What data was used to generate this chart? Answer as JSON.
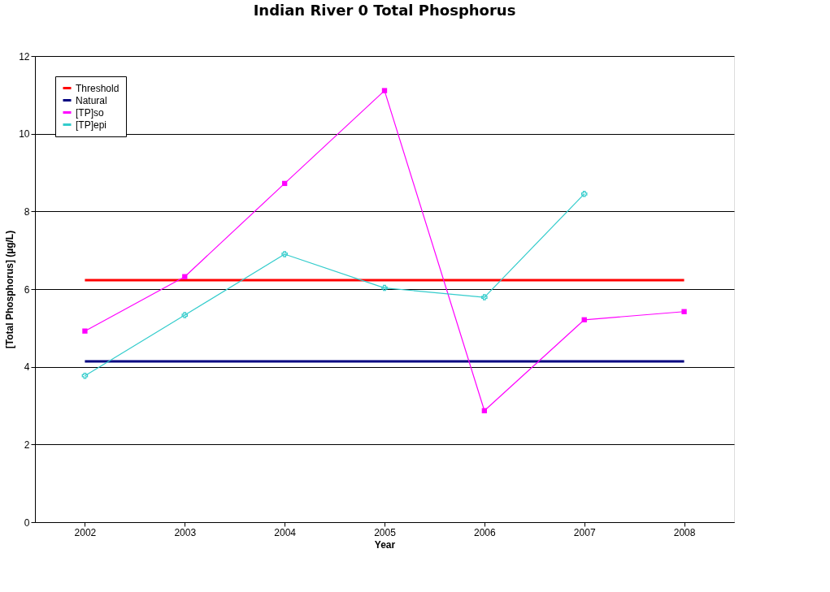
{
  "chart_data": {
    "type": "line",
    "title": "Indian River 0 Total Phosphorus",
    "xlabel": "Year",
    "ylabel": "[Total Phosphorus] (µg/L)",
    "categories": [
      "2002",
      "2003",
      "2004",
      "2005",
      "2006",
      "2007",
      "2008"
    ],
    "series": [
      {
        "name": "Threshold",
        "color": "#ff0000",
        "marker": "none",
        "values": [
          6.23,
          6.23,
          6.23,
          6.23,
          6.23,
          6.23,
          6.23
        ]
      },
      {
        "name": "Natural",
        "color": "#000080",
        "marker": "none",
        "values": [
          4.14,
          4.14,
          4.14,
          4.14,
          4.14,
          4.14,
          4.14
        ]
      },
      {
        "name": "[TP]so",
        "color": "#ff00ff",
        "marker": "square",
        "values": [
          4.92,
          6.32,
          8.72,
          11.11,
          2.87,
          5.21,
          5.42
        ]
      },
      {
        "name": "[TP]epi",
        "color": "#33cccc",
        "marker": "cross",
        "values": [
          3.77,
          5.33,
          6.9,
          6.03,
          5.79,
          8.45,
          null
        ]
      }
    ],
    "ylim": [
      0,
      12
    ],
    "yticks": [
      0,
      2,
      4,
      6,
      8,
      10,
      12
    ],
    "grid": "y",
    "legend": "top left"
  }
}
